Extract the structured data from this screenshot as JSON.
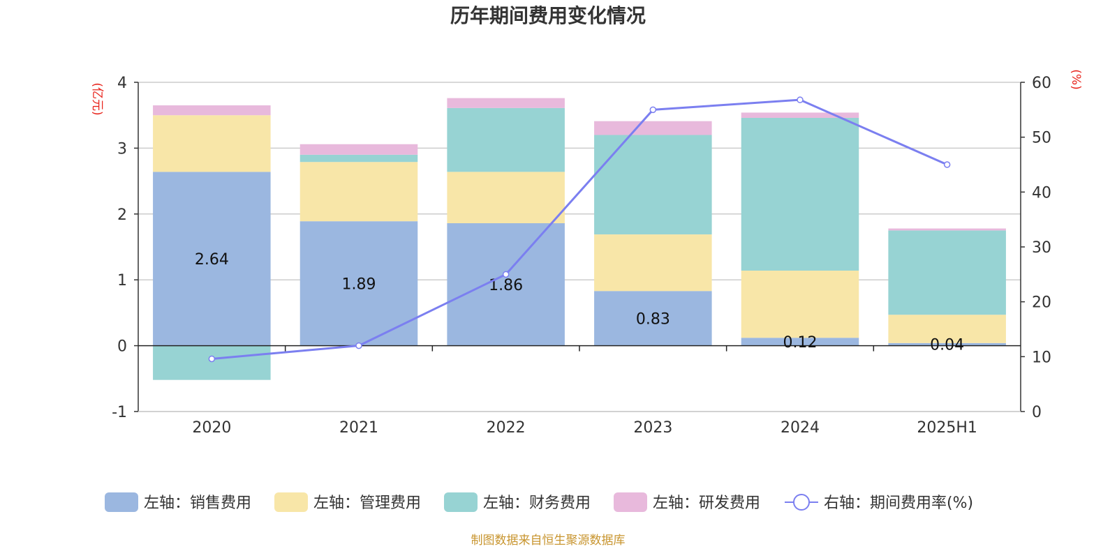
{
  "chart_data": {
    "type": "bar",
    "title": "历年期间费用变化情况",
    "categories": [
      "2020",
      "2021",
      "2022",
      "2023",
      "2024",
      "2025H1"
    ],
    "left_axis": {
      "unit": "(亿元)",
      "ylim": [
        -1,
        4
      ],
      "ticks": [
        "4",
        "3",
        "2",
        "1",
        "0",
        "-1"
      ]
    },
    "right_axis": {
      "unit": "(%)",
      "ylim": [
        0,
        60
      ],
      "ticks": [
        "60",
        "50",
        "40",
        "30",
        "20",
        "10",
        "0"
      ]
    },
    "stacked": true,
    "series": [
      {
        "name": "左轴：销售费用",
        "color": "#9bb7e0",
        "values": [
          2.64,
          1.89,
          1.86,
          0.83,
          0.12,
          0.04
        ]
      },
      {
        "name": "左轴：管理费用",
        "color": "#f8e6a8",
        "values": [
          0.86,
          0.9,
          0.78,
          0.86,
          1.02,
          0.43
        ]
      },
      {
        "name": "左轴：财务费用",
        "color": "#97d3d3",
        "values": [
          -0.52,
          0.11,
          0.97,
          1.51,
          2.32,
          1.28
        ]
      },
      {
        "name": "左轴：研发费用",
        "color": "#e8b9dc",
        "values": [
          0.15,
          0.16,
          0.15,
          0.21,
          0.08,
          0.03
        ]
      }
    ],
    "line": {
      "name": "右轴：期间费用率(%)",
      "color": "#7b7ff0",
      "values": [
        9.6,
        12.0,
        25.0,
        55.0,
        56.8,
        45.0
      ]
    },
    "data_labels": [
      "2.64",
      "1.89",
      "1.86",
      "0.83",
      "0.12",
      "0.04"
    ],
    "grid": true
  },
  "source_note": "制图数据来自恒生聚源数据库"
}
